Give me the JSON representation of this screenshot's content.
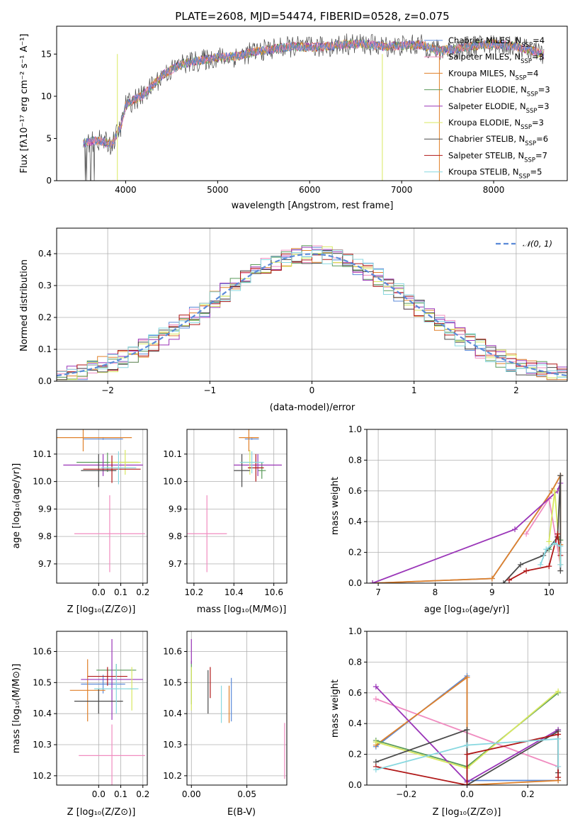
{
  "colors": {
    "Chabrier MILES": "#5b8ad8",
    "Salpeter MILES": "#f08cc0",
    "Kroupa MILES": "#e0812a",
    "Chabrier ELODIE": "#5a9a5a",
    "Salpeter ELODIE": "#9a35b8",
    "Kroupa ELODIE": "#d8e860",
    "Chabrier STELIB": "#4a4a4a",
    "Salpeter STELIB": "#b01818",
    "Kroupa STELIB": "#88d8e0",
    "gauss": "#5b8ad8"
  },
  "chart_data": [
    {
      "id": "spectrum",
      "type": "line",
      "title": "PLATE=2608, MJD=54474, FIBERID=0528, z=0.075",
      "xlabel": "wavelength [Angstrom, rest frame]",
      "ylabel": "Flux [fλ10⁻¹⁷ erg cm⁻² s⁻¹ A⁻¹]",
      "xlim": [
        3250,
        8800
      ],
      "ylim": [
        0,
        18.3
      ],
      "xticks": [
        "4000",
        "5000",
        "6000",
        "7000",
        "8000"
      ],
      "yticks": [
        "0",
        "5",
        "10",
        "15"
      ],
      "grid": false,
      "legend_position": "top-right",
      "legend": [
        {
          "base": "Chabrier MILES, N",
          "sub": "SSP",
          "tail": "=4"
        },
        {
          "base": "Salpeter MILES, N",
          "sub": "SSP",
          "tail": "=3"
        },
        {
          "base": "Kroupa MILES, N",
          "sub": "SSP",
          "tail": "=4"
        },
        {
          "base": "Chabrier ELODIE, N",
          "sub": "SSP",
          "tail": "=3"
        },
        {
          "base": "Salpeter ELODIE, N",
          "sub": "SSP",
          "tail": "=3"
        },
        {
          "base": "Kroupa ELODIE, N",
          "sub": "SSP",
          "tail": "=3"
        },
        {
          "base": "Chabrier STELIB, N",
          "sub": "SSP",
          "tail": "=6"
        },
        {
          "base": "Salpeter STELIB, N",
          "sub": "SSP",
          "tail": "=7"
        },
        {
          "base": "Kroupa STELIB, N",
          "sub": "SSP",
          "tail": "=5"
        }
      ],
      "continuum": [
        [
          3540,
          4.5
        ],
        [
          3700,
          4.8
        ],
        [
          3850,
          4.3
        ],
        [
          3950,
          6.5
        ],
        [
          4000,
          9
        ],
        [
          4200,
          10.2
        ],
        [
          4400,
          12.5
        ],
        [
          4600,
          13.8
        ],
        [
          4800,
          14.2
        ],
        [
          5000,
          14.6
        ],
        [
          5200,
          14.7
        ],
        [
          5400,
          15.3
        ],
        [
          5600,
          15.6
        ],
        [
          5800,
          15.9
        ],
        [
          6000,
          15.8
        ],
        [
          6200,
          15.9
        ],
        [
          6400,
          16.2
        ],
        [
          6600,
          16.2
        ],
        [
          6800,
          15.9
        ],
        [
          7000,
          16.0
        ],
        [
          7200,
          16.1
        ],
        [
          7400,
          15.4
        ],
        [
          7600,
          15.6
        ],
        [
          7800,
          16.0
        ],
        [
          8000,
          16.2
        ],
        [
          8200,
          16.0
        ],
        [
          8400,
          15.5
        ],
        [
          8550,
          14.9
        ]
      ]
    },
    {
      "id": "residuals",
      "type": "line",
      "xlabel": "(data-model)/error",
      "ylabel": "Normed distribution",
      "xlim": [
        -2.5,
        2.5
      ],
      "ylim": [
        0,
        0.48
      ],
      "xticks": [
        "−2",
        "−1",
        "0",
        "1",
        "2"
      ],
      "yticks": [
        "0.0",
        "0.1",
        "0.2",
        "0.3",
        "0.4"
      ],
      "grid": true,
      "legend": "𝒩(0, 1)",
      "legend_position": "top-right"
    },
    {
      "id": "age-vs-Z",
      "type": "scatter",
      "xlabel": "Z [log₁₀(Z/Z⊙)]",
      "ylabel": "age  [log₁₀(age/yr)]",
      "xlim": [
        -0.19,
        0.22
      ],
      "ylim": [
        9.63,
        10.19
      ],
      "xticks": [
        "0.0",
        "0.1",
        "0.2"
      ],
      "yticks": [
        "9.7",
        "9.8",
        "9.9",
        "10.0",
        "10.1"
      ],
      "grid": true,
      "points": [
        {
          "model": "Chabrier MILES",
          "x": 0.02,
          "y": 10.155,
          "xerr": 0.09,
          "yerr": 0.003
        },
        {
          "model": "Salpeter MILES",
          "x": 0.05,
          "y": 9.81,
          "xerr": 0.16,
          "yerr": 0.14
        },
        {
          "model": "Kroupa MILES",
          "x": -0.07,
          "y": 10.16,
          "xerr": 0.22,
          "yerr": 0.05
        },
        {
          "model": "Chabrier ELODIE",
          "x": 0.04,
          "y": 10.07,
          "xerr": 0.14,
          "yerr": 0.035
        },
        {
          "model": "Salpeter ELODIE",
          "x": 0.02,
          "y": 10.06,
          "xerr": 0.18,
          "yerr": 0.04
        },
        {
          "model": "Kroupa ELODIE",
          "x": 0.12,
          "y": 10.07,
          "xerr": 0.07,
          "yerr": 0.045
        },
        {
          "model": "Chabrier STELIB",
          "x": 0.0,
          "y": 10.04,
          "xerr": 0.08,
          "yerr": 0.06
        },
        {
          "model": "Salpeter STELIB",
          "x": 0.06,
          "y": 10.045,
          "xerr": 0.13,
          "yerr": 0.05
        },
        {
          "model": "Kroupa STELIB",
          "x": 0.09,
          "y": 10.05,
          "xerr": 0.08,
          "yerr": 0.06
        }
      ]
    },
    {
      "id": "age-vs-mass",
      "type": "scatter",
      "xlabel": "mass [log₁₀(M/M⊙)]",
      "xlim": [
        10.165,
        10.665
      ],
      "ylim": [
        9.63,
        10.19
      ],
      "xticks": [
        "10.2",
        "10.4",
        "10.6"
      ],
      "yticks": [
        "9.7",
        "9.8",
        "9.9",
        "10.0",
        "10.1"
      ],
      "grid": true,
      "points": [
        {
          "model": "Chabrier MILES",
          "x": 10.49,
          "y": 10.155,
          "xerr": 0.035,
          "yerr": 0.003
        },
        {
          "model": "Salpeter MILES",
          "x": 10.265,
          "y": 9.81,
          "xerr": 0.1,
          "yerr": 0.14
        },
        {
          "model": "Kroupa MILES",
          "x": 10.475,
          "y": 10.16,
          "xerr": 0.05,
          "yerr": 0.05
        },
        {
          "model": "Chabrier ELODIE",
          "x": 10.54,
          "y": 10.04,
          "xerr": 0.02,
          "yerr": 0.03
        },
        {
          "model": "Salpeter ELODIE",
          "x": 10.52,
          "y": 10.06,
          "xerr": 0.12,
          "yerr": 0.04
        },
        {
          "model": "Kroupa ELODIE",
          "x": 10.48,
          "y": 10.07,
          "xerr": 0.05,
          "yerr": 0.045
        },
        {
          "model": "Chabrier STELIB",
          "x": 10.44,
          "y": 10.04,
          "xerr": 0.04,
          "yerr": 0.06
        },
        {
          "model": "Salpeter STELIB",
          "x": 10.51,
          "y": 10.05,
          "xerr": 0.04,
          "yerr": 0.05
        },
        {
          "model": "Kroupa STELIB",
          "x": 10.49,
          "y": 10.07,
          "xerr": 0.06,
          "yerr": 0.04
        }
      ]
    },
    {
      "id": "mass-weight-vs-age",
      "type": "line",
      "xlabel": "age  [log₁₀(age/yr)]",
      "ylabel": "mass weight",
      "xlim": [
        6.8,
        10.32
      ],
      "ylim": [
        0,
        1.0
      ],
      "xticks": [
        "7",
        "8",
        "9",
        "10"
      ],
      "yticks": [
        "0.0",
        "0.2",
        "0.4",
        "0.6",
        "0.8",
        "1.0"
      ],
      "grid": true,
      "series": [
        {
          "model": "Chabrier MILES",
          "x": [
            6.9,
            9.0,
            10.05,
            10.2
          ],
          "y": [
            0.0,
            0.03,
            0.6,
            0.7
          ]
        },
        {
          "model": "Salpeter MILES",
          "x": [
            9.6,
            10.0,
            10.2
          ],
          "y": [
            0.32,
            0.55,
            0.12
          ]
        },
        {
          "model": "Kroupa MILES",
          "x": [
            6.9,
            9.0,
            10.05,
            10.2,
            10.2
          ],
          "y": [
            0.0,
            0.03,
            0.6,
            0.7,
            0.25
          ]
        },
        {
          "model": "Chabrier ELODIE",
          "x": [
            10.0,
            10.15,
            10.2
          ],
          "y": [
            0.22,
            0.3,
            0.28
          ]
        },
        {
          "model": "Salpeter ELODIE",
          "x": [
            6.9,
            9.4,
            10.15,
            10.2
          ],
          "y": [
            0.0,
            0.35,
            0.6,
            0.65
          ]
        },
        {
          "model": "Kroupa ELODIE",
          "x": [
            10.0,
            10.1,
            10.2
          ],
          "y": [
            0.27,
            0.6,
            0.12
          ]
        },
        {
          "model": "Chabrier STELIB",
          "x": [
            9.2,
            9.5,
            9.9,
            10.15,
            10.2,
            10.2
          ],
          "y": [
            0.0,
            0.12,
            0.18,
            0.3,
            0.7,
            0.08
          ]
        },
        {
          "model": "Salpeter STELIB",
          "x": [
            9.3,
            9.6,
            10.0,
            10.15,
            10.2
          ],
          "y": [
            0.02,
            0.08,
            0.11,
            0.32,
            0.18
          ]
        },
        {
          "model": "Kroupa STELIB",
          "x": [
            9.85,
            9.95,
            10.1,
            10.2,
            10.2
          ],
          "y": [
            0.12,
            0.22,
            0.26,
            0.24,
            0.12
          ]
        }
      ]
    },
    {
      "id": "mass-vs-Z",
      "type": "scatter",
      "xlabel": "Z [log₁₀(Z/Z⊙)]",
      "ylabel": "mass [log₁₀(M/M⊙)]",
      "xlim": [
        -0.19,
        0.22
      ],
      "ylim": [
        10.17,
        10.665
      ],
      "xticks": [
        "0.0",
        "0.1",
        "0.2"
      ],
      "yticks": [
        "10.2",
        "10.3",
        "10.4",
        "10.5",
        "10.6"
      ],
      "grid": true,
      "points": [
        {
          "model": "Chabrier MILES",
          "x": 0.02,
          "y": 10.495,
          "xerr": 0.1,
          "yerr": 0.03
        },
        {
          "model": "Salpeter MILES",
          "x": 0.06,
          "y": 10.265,
          "xerr": 0.15,
          "yerr": 0.1
        },
        {
          "model": "Kroupa MILES",
          "x": -0.05,
          "y": 10.475,
          "xerr": 0.08,
          "yerr": 0.1
        },
        {
          "model": "Chabrier ELODIE",
          "x": 0.08,
          "y": 10.54,
          "xerr": 0.09,
          "yerr": 0.02
        },
        {
          "model": "Salpeter ELODIE",
          "x": 0.06,
          "y": 10.51,
          "xerr": 0.14,
          "yerr": 0.13
        },
        {
          "model": "Kroupa ELODIE",
          "x": 0.15,
          "y": 10.48,
          "xerr": 0.02,
          "yerr": 0.07
        },
        {
          "model": "Chabrier STELIB",
          "x": 0.0,
          "y": 10.44,
          "xerr": 0.11,
          "yerr": 0.04
        },
        {
          "model": "Salpeter STELIB",
          "x": 0.04,
          "y": 10.52,
          "xerr": 0.09,
          "yerr": 0.03
        },
        {
          "model": "Kroupa STELIB",
          "x": 0.08,
          "y": 10.48,
          "xerr": 0.1,
          "yerr": 0.08
        }
      ]
    },
    {
      "id": "mass-vs-EBV",
      "type": "scatter",
      "xlabel": "E(B-V)",
      "xlim": [
        -0.004,
        0.086
      ],
      "ylim": [
        10.17,
        10.665
      ],
      "xticks": [
        "0.00",
        "0.05"
      ],
      "yticks": [
        "10.2",
        "10.3",
        "10.4",
        "10.5",
        "10.6"
      ],
      "grid": true,
      "points": [
        {
          "model": "Chabrier MILES",
          "x": 0.036,
          "y": 10.445,
          "xerr": 0,
          "yerr": 0.07
        },
        {
          "model": "Salpeter MILES",
          "x": 0.084,
          "y": 10.28,
          "xerr": 0,
          "yerr": 0.09
        },
        {
          "model": "Kroupa MILES",
          "x": 0.034,
          "y": 10.43,
          "xerr": 0,
          "yerr": 0.06
        },
        {
          "model": "Chabrier ELODIE",
          "x": 0.0,
          "y": 10.5,
          "xerr": 0,
          "yerr": 0.07
        },
        {
          "model": "Salpeter ELODIE",
          "x": 0.0,
          "y": 10.6,
          "xerr": 0,
          "yerr": 0.04
        },
        {
          "model": "Kroupa ELODIE",
          "x": 0.0,
          "y": 10.48,
          "xerr": 0,
          "yerr": 0.07
        },
        {
          "model": "Chabrier STELIB",
          "x": 0.015,
          "y": 10.47,
          "xerr": 0,
          "yerr": 0.07
        },
        {
          "model": "Salpeter STELIB",
          "x": 0.017,
          "y": 10.5,
          "xerr": 0,
          "yerr": 0.05
        },
        {
          "model": "Kroupa STELIB",
          "x": 0.027,
          "y": 10.43,
          "xerr": 0,
          "yerr": 0.06
        }
      ]
    },
    {
      "id": "mass-weight-vs-Z",
      "type": "line",
      "xlabel": "Z [log₁₀(Z/Z⊙)]",
      "ylabel": "mass weight",
      "xlim": [
        -0.33,
        0.33
      ],
      "ylim": [
        0,
        1.0
      ],
      "xticks": [
        "−0.2",
        "0.0",
        "0.2"
      ],
      "yticks": [
        "0.0",
        "0.2",
        "0.4",
        "0.6",
        "0.8",
        "1.0"
      ],
      "grid": true,
      "series": [
        {
          "model": "Chabrier MILES",
          "x": [
            -0.3,
            0.0,
            0.0,
            0.3
          ],
          "y": [
            0.25,
            0.71,
            0.03,
            0.03
          ]
        },
        {
          "model": "Salpeter MILES",
          "x": [
            -0.3,
            0.3
          ],
          "y": [
            0.56,
            0.12
          ]
        },
        {
          "model": "Kroupa MILES",
          "x": [
            -0.3,
            0.0,
            0.0,
            0.3
          ],
          "y": [
            0.26,
            0.7,
            0.0,
            0.03
          ]
        },
        {
          "model": "Chabrier ELODIE",
          "x": [
            -0.3,
            0.0,
            0.3
          ],
          "y": [
            0.29,
            0.12,
            0.6
          ]
        },
        {
          "model": "Salpeter ELODIE",
          "x": [
            -0.3,
            0.0,
            0.3
          ],
          "y": [
            0.64,
            0.02,
            0.36
          ]
        },
        {
          "model": "Kroupa ELODIE",
          "x": [
            -0.3,
            0.0,
            0.3
          ],
          "y": [
            0.28,
            0.11,
            0.61
          ]
        },
        {
          "model": "Chabrier STELIB",
          "x": [
            -0.3,
            0.0,
            0.0,
            0.3,
            0.3
          ],
          "y": [
            0.15,
            0.36,
            0.0,
            0.35,
            0.08
          ]
        },
        {
          "model": "Salpeter STELIB",
          "x": [
            -0.3,
            0.0,
            0.0,
            0.3,
            0.3
          ],
          "y": [
            0.12,
            0.0,
            0.2,
            0.33,
            0.05
          ]
        },
        {
          "model": "Kroupa STELIB",
          "x": [
            -0.3,
            0.0,
            0.3,
            0.3
          ],
          "y": [
            0.1,
            0.26,
            0.3,
            0.12
          ]
        }
      ]
    }
  ]
}
